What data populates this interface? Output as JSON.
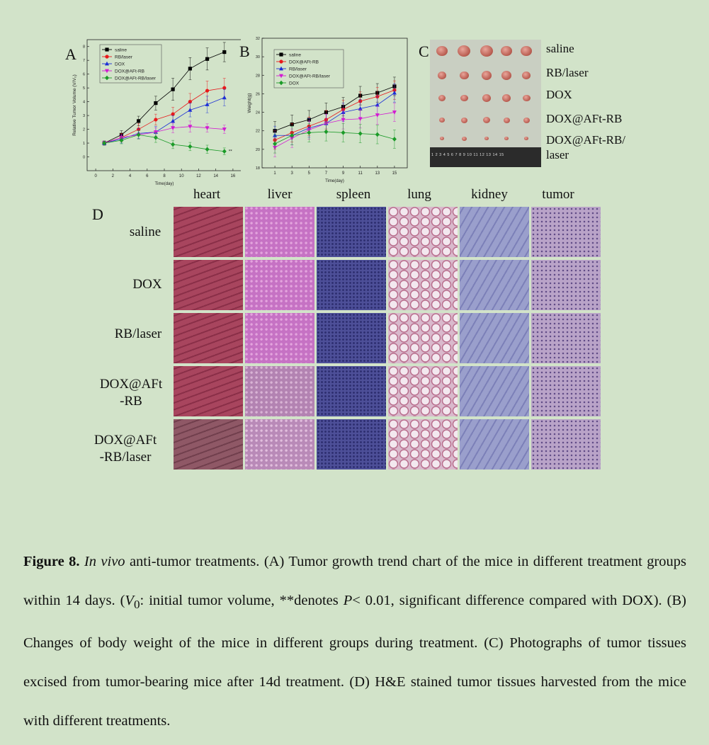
{
  "panel_letters": {
    "a": "A",
    "b": "B",
    "c": "C",
    "d": "D"
  },
  "chart_data": [
    {
      "type": "line",
      "panel": "A",
      "xlabel": "Time(day)",
      "ylabel": "Relative Tumor Volume (V/V₀)",
      "xlim": [
        -1,
        17
      ],
      "ylim": [
        -1,
        8.5
      ],
      "xticks": [
        0,
        2,
        4,
        6,
        8,
        10,
        12,
        14,
        16
      ],
      "yticks": [
        0,
        1,
        2,
        3,
        4,
        5,
        6,
        7,
        8
      ],
      "x": [
        1,
        3,
        5,
        7,
        9,
        11,
        13,
        15
      ],
      "legend_position": "top-left",
      "annotation": "**",
      "series": [
        {
          "name": "saline",
          "color": "#000000",
          "marker": "square",
          "values": [
            1.0,
            1.6,
            2.6,
            3.9,
            4.9,
            6.4,
            7.1,
            7.6
          ],
          "err": [
            0.15,
            0.3,
            0.35,
            0.5,
            0.8,
            0.8,
            0.8,
            0.7
          ]
        },
        {
          "name": "RB/laser",
          "color": "#e8191b",
          "marker": "circle",
          "values": [
            1.0,
            1.4,
            2.0,
            2.7,
            3.1,
            4.0,
            4.8,
            5.0
          ],
          "err": [
            0.15,
            0.3,
            0.4,
            0.4,
            0.5,
            0.6,
            0.7,
            0.7
          ]
        },
        {
          "name": "DOX",
          "color": "#1c2fd6",
          "marker": "triangle-up",
          "values": [
            1.0,
            1.3,
            1.7,
            1.8,
            2.6,
            3.4,
            3.8,
            4.3
          ],
          "err": [
            0.15,
            0.3,
            0.35,
            0.4,
            0.4,
            0.5,
            0.6,
            0.6
          ]
        },
        {
          "name": "DOX@AFt-RB",
          "color": "#d21ad2",
          "marker": "triangle-down",
          "values": [
            1.0,
            1.4,
            1.6,
            1.8,
            2.1,
            2.2,
            2.1,
            2.0
          ],
          "err": [
            0.15,
            0.2,
            0.3,
            0.3,
            0.35,
            0.4,
            0.3,
            0.3
          ]
        },
        {
          "name": "DOX@AFt-RB/laser",
          "color": "#1b9b28",
          "marker": "diamond",
          "values": [
            1.0,
            1.2,
            1.6,
            1.4,
            0.9,
            0.75,
            0.55,
            0.4
          ],
          "err": [
            0.15,
            0.25,
            0.3,
            0.35,
            0.3,
            0.3,
            0.3,
            0.25
          ]
        }
      ]
    },
    {
      "type": "line",
      "panel": "B",
      "xlabel": "Time(day)",
      "ylabel": "Weight(g)",
      "xlim": [
        -0.5,
        16.5
      ],
      "ylim": [
        18,
        32
      ],
      "xticks": [
        1,
        3,
        5,
        7,
        9,
        11,
        13,
        15
      ],
      "yticks": [
        18,
        20,
        22,
        24,
        26,
        28,
        30,
        32
      ],
      "x": [
        1,
        3,
        5,
        7,
        9,
        11,
        13,
        15
      ],
      "legend_position": "top-left",
      "series": [
        {
          "name": "saline",
          "color": "#000000",
          "marker": "square",
          "values": [
            22.0,
            22.7,
            23.2,
            24.0,
            24.6,
            25.8,
            26.1,
            26.8
          ],
          "err": [
            1.0,
            1.0,
            1.0,
            1.0,
            1.0,
            1.0,
            1.0,
            1.0
          ]
        },
        {
          "name": "DOX@AFt-RB",
          "color": "#e8191b",
          "marker": "circle",
          "values": [
            21.0,
            21.8,
            22.5,
            23.2,
            24.3,
            25.2,
            25.7,
            26.4
          ],
          "err": [
            1.0,
            1.0,
            1.0,
            1.0,
            1.0,
            1.0,
            1.0,
            1.0
          ]
        },
        {
          "name": "RB/laser",
          "color": "#1c2fd6",
          "marker": "triangle-up",
          "values": [
            21.5,
            21.5,
            22.3,
            22.8,
            24.0,
            24.4,
            24.8,
            26.1
          ],
          "err": [
            1.0,
            1.0,
            1.0,
            1.0,
            1.0,
            1.0,
            1.0,
            1.0
          ]
        },
        {
          "name": "DOX@AFt-RB/laser",
          "color": "#d21ad2",
          "marker": "triangle-down",
          "values": [
            20.2,
            21.2,
            22.1,
            22.8,
            23.2,
            23.3,
            23.7,
            24.0
          ],
          "err": [
            1.0,
            1.0,
            1.0,
            1.0,
            1.0,
            1.0,
            1.0,
            1.0
          ]
        },
        {
          "name": "DOX",
          "color": "#1b9b28",
          "marker": "diamond",
          "values": [
            20.6,
            21.5,
            21.8,
            21.9,
            21.8,
            21.7,
            21.6,
            21.1
          ],
          "err": [
            1.0,
            1.0,
            1.0,
            1.0,
            1.0,
            1.0,
            1.0,
            1.0
          ]
        }
      ]
    }
  ],
  "panel_c": {
    "labels": [
      "saline",
      "RB/laser",
      "DOX",
      "DOX@AFt-RB",
      "DOX@AFt-RB/",
      "laser"
    ],
    "ruler_numbers": "1 2 3 4 5 6 7 8 9 10 11 12 13 14 15",
    "tumor_color": "#c0655a"
  },
  "panel_d": {
    "columns": [
      "heart",
      "liver",
      "spleen",
      "lung",
      "kidney",
      "tumor"
    ],
    "rows": [
      {
        "line1": "saline",
        "line2": ""
      },
      {
        "line1": "DOX",
        "line2": ""
      },
      {
        "line1": "RB/laser",
        "line2": ""
      },
      {
        "line1": "DOX@AFt",
        "line2": "-RB"
      },
      {
        "line1": "DOX@AFt",
        "line2": "-RB/laser"
      }
    ],
    "tissue_colors": [
      "#a8455e",
      "#c672c4",
      "#4d4f98",
      "#d9b9cc",
      "#9a9fcc",
      "#b9a3c8"
    ]
  },
  "caption": {
    "fig": "Figure 8.",
    "in_vivo": "In vivo",
    "part1": " anti-tumor treatments. (A) Tumor growth trend chart of the mice in different treatment groups within 14 days. (",
    "v": "V",
    "sub0": "0",
    "part2": ": initial tumor volume, **denotes ",
    "p": "P",
    "part3": "< 0.01, significant difference compared with DOX). (B) Changes of body weight of the mice in different groups during treatment. (C) Photographs of tumor tissues excised from tumor-bearing mice after 14d treatment. (D) H&E stained tumor tissues harvested from the mice with different treatments."
  }
}
